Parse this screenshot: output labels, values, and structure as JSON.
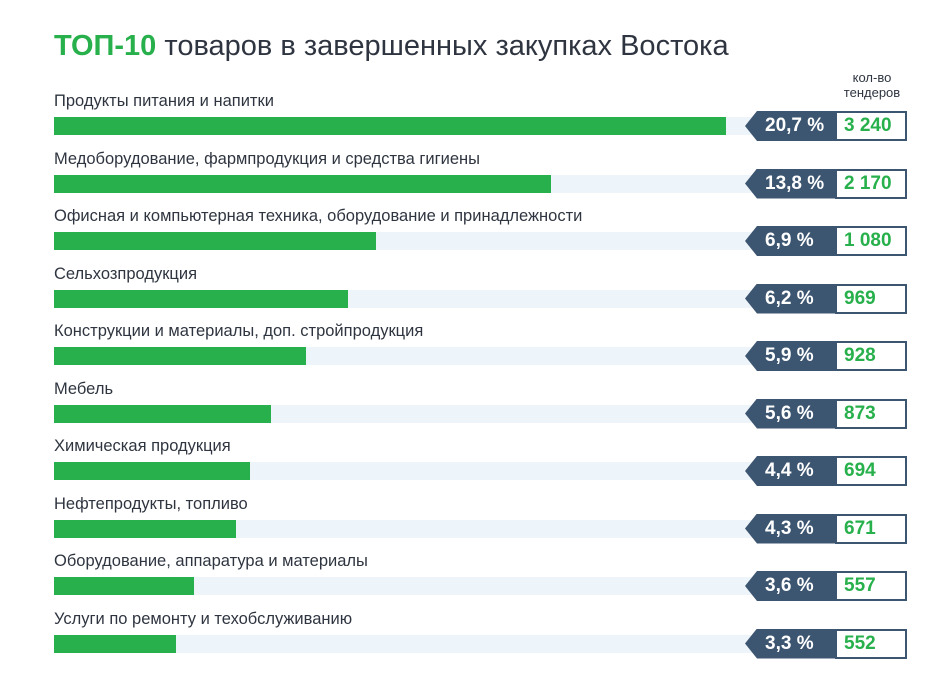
{
  "title": {
    "highlight": "ТОП-10",
    "rest": "товаров в завершенных закупках Востока"
  },
  "count_header": {
    "line1": "кол-во",
    "line2": "тендеров"
  },
  "colors": {
    "bar": "#27b04b",
    "track": "#eef5fa",
    "percent_box": "#3c5570",
    "count_text": "#27b04b",
    "title_accent": "#27b04b"
  },
  "chart_data": {
    "type": "bar",
    "orientation": "horizontal",
    "categories": [
      "Продукты питания и напитки",
      "Медоборудование, фармпродукция и средства гигиены",
      "Офисная и компьютерная техника, оборудование и принадлежности",
      "Сельхозпродукция",
      "Конструкции и материалы, доп. стройпродукция",
      "Мебель",
      "Химическая продукция",
      "Нефтепродукты, топливо",
      "Оборудование, аппаратура и материалы",
      "Услуги по ремонту и техобслуживанию"
    ],
    "series": [
      {
        "values": [
          20.7,
          13.8,
          6.9,
          6.2,
          5.9,
          5.6,
          4.4,
          4.3,
          3.6,
          3.3
        ],
        "labels": [
          "20,7 %",
          "13,8 %",
          "6,9 %",
          "6,2 %",
          "5,9 %",
          "5,6 %",
          "4,4 %",
          "4,3 %",
          "3,6 %",
          "3,3 %"
        ]
      }
    ],
    "counts": [
      3240,
      2170,
      1080,
      969,
      928,
      873,
      694,
      671,
      557,
      552
    ],
    "count_labels": [
      "3 240",
      "2 170",
      "1 080",
      "969",
      "928",
      "873",
      "694",
      "671",
      "557",
      "552"
    ],
    "bar_fill_fraction": [
      0.96,
      0.71,
      0.46,
      0.42,
      0.36,
      0.31,
      0.28,
      0.26,
      0.2,
      0.175
    ]
  }
}
